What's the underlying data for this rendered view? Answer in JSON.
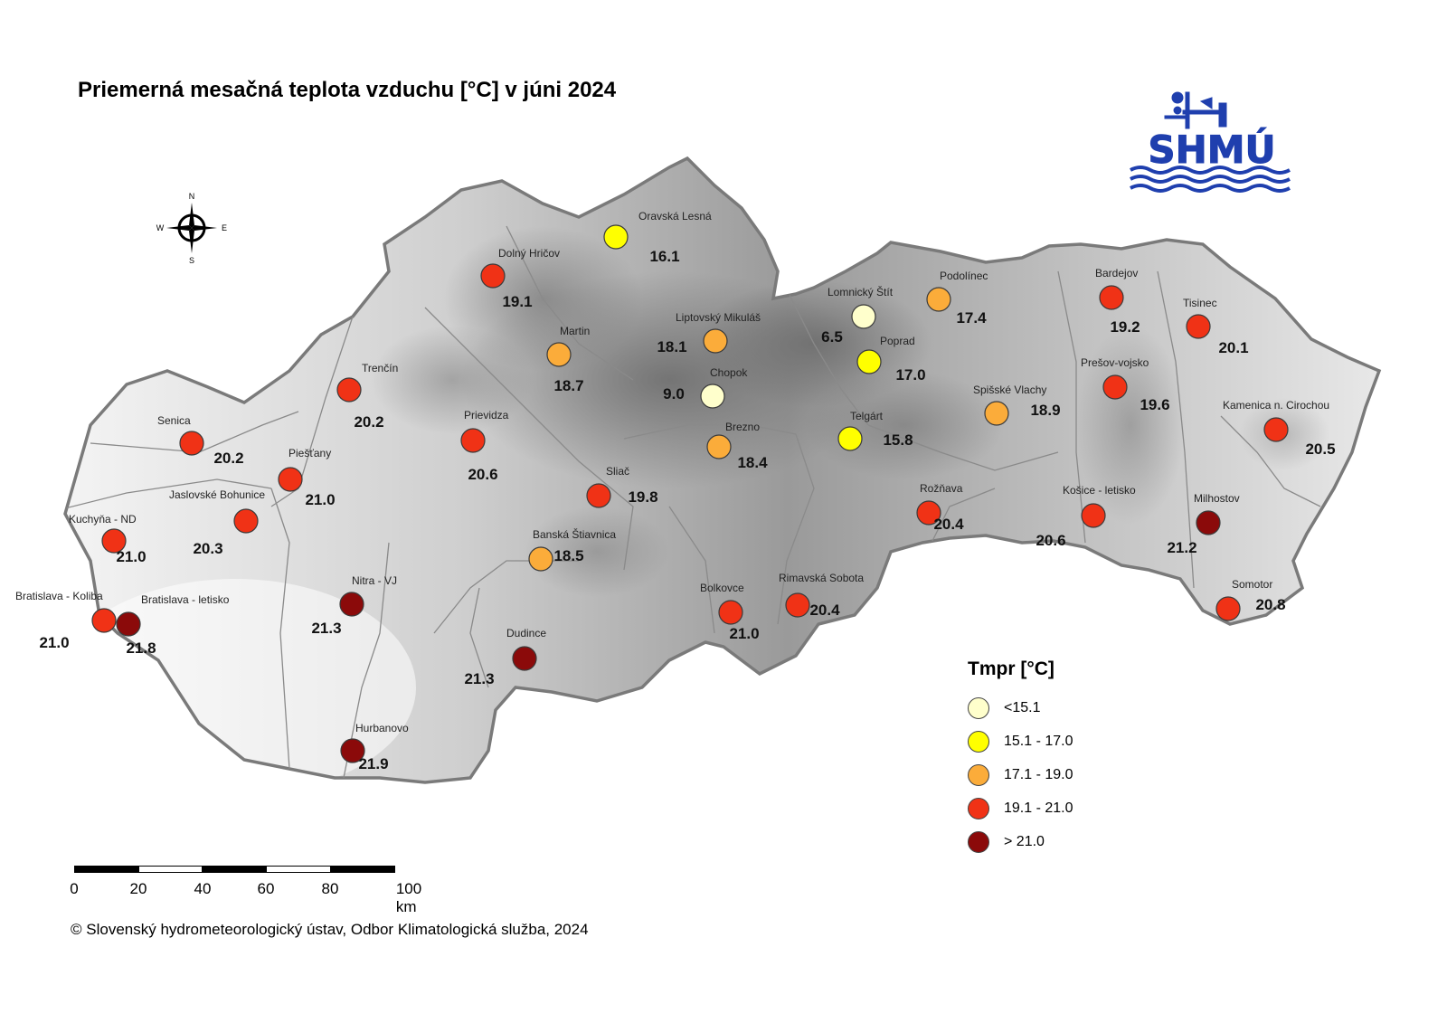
{
  "title": "Priemerná mesačná teplota vzduchu [°C] v júni 2024",
  "logo_text": "SHMÚ",
  "compass": {
    "n": "N",
    "s": "S",
    "e": "E",
    "w": "W"
  },
  "legend": {
    "title": "Tmpr [°C]",
    "classes": [
      {
        "label": "<15.1",
        "color": "#ffffcc"
      },
      {
        "label": "15.1 - 17.0",
        "color": "#ffff00"
      },
      {
        "label": "17.1 - 19.0",
        "color": "#fbac3a"
      },
      {
        "label": "19.1 - 21.0",
        "color": "#f03216"
      },
      {
        "label": "> 21.0",
        "color": "#8b0a0a"
      }
    ]
  },
  "scalebar": {
    "ticks": [
      "0",
      "20",
      "40",
      "60",
      "80",
      "100 km"
    ]
  },
  "copyright": "© Slovenský hydrometeorologický ústav, Odbor Klimatologická služba, 2024",
  "stations": [
    {
      "name": "Oravská Lesná",
      "value": "16.1",
      "cls": 1
    },
    {
      "name": "Dolný Hričov",
      "value": "19.1",
      "cls": 3
    },
    {
      "name": "Martin",
      "value": "18.7",
      "cls": 2
    },
    {
      "name": "Liptovský Mikuláš",
      "value": "18.1",
      "cls": 2
    },
    {
      "name": "Chopok",
      "value": "9.0",
      "cls": 0
    },
    {
      "name": "Lomnický Štít",
      "value": "6.5",
      "cls": 0
    },
    {
      "name": "Podolínec",
      "value": "17.4",
      "cls": 2
    },
    {
      "name": "Poprad",
      "value": "17.0",
      "cls": 1
    },
    {
      "name": "Bardejov",
      "value": "19.2",
      "cls": 3
    },
    {
      "name": "Tisinec",
      "value": "20.1",
      "cls": 3
    },
    {
      "name": "Prešov-vojsko",
      "value": "19.6",
      "cls": 3
    },
    {
      "name": "Spišské Vlachy",
      "value": "18.9",
      "cls": 2
    },
    {
      "name": "Kamenica n. Cirochou",
      "value": "20.5",
      "cls": 3
    },
    {
      "name": "Trenčín",
      "value": "20.2",
      "cls": 3
    },
    {
      "name": "Senica",
      "value": "20.2",
      "cls": 3
    },
    {
      "name": "Prievidza",
      "value": "20.6",
      "cls": 3
    },
    {
      "name": "Piešťany",
      "value": "21.0",
      "cls": 3
    },
    {
      "name": "Telgárt",
      "value": "15.8",
      "cls": 1
    },
    {
      "name": "Brezno",
      "value": "18.4",
      "cls": 2
    },
    {
      "name": "Sliač",
      "value": "19.8",
      "cls": 3
    },
    {
      "name": "Jaslovské Bohunice",
      "value": "20.3",
      "cls": 3
    },
    {
      "name": "Kuchyňa - ND",
      "value": "21.0",
      "cls": 3
    },
    {
      "name": "Rožňava",
      "value": "20.4",
      "cls": 3
    },
    {
      "name": "Košice - letisko",
      "value": "20.6",
      "cls": 3
    },
    {
      "name": "Milhostov",
      "value": "21.2",
      "cls": 4
    },
    {
      "name": "Banská Štiavnica",
      "value": "18.5",
      "cls": 2
    },
    {
      "name": "Nitra - VJ",
      "value": "21.3",
      "cls": 4
    },
    {
      "name": "Bratislava - Koliba",
      "value": "21.0",
      "cls": 3
    },
    {
      "name": "Bratislava - letisko",
      "value": "21.8",
      "cls": 4
    },
    {
      "name": "Bolkovce",
      "value": "21.0",
      "cls": 3
    },
    {
      "name": "Rimavská Sobota",
      "value": "20.4",
      "cls": 3
    },
    {
      "name": "Somotor",
      "value": "20.8",
      "cls": 3
    },
    {
      "name": "Dudince",
      "value": "21.3",
      "cls": 4
    },
    {
      "name": "Hurbanovo",
      "value": "21.9",
      "cls": 4
    }
  ]
}
